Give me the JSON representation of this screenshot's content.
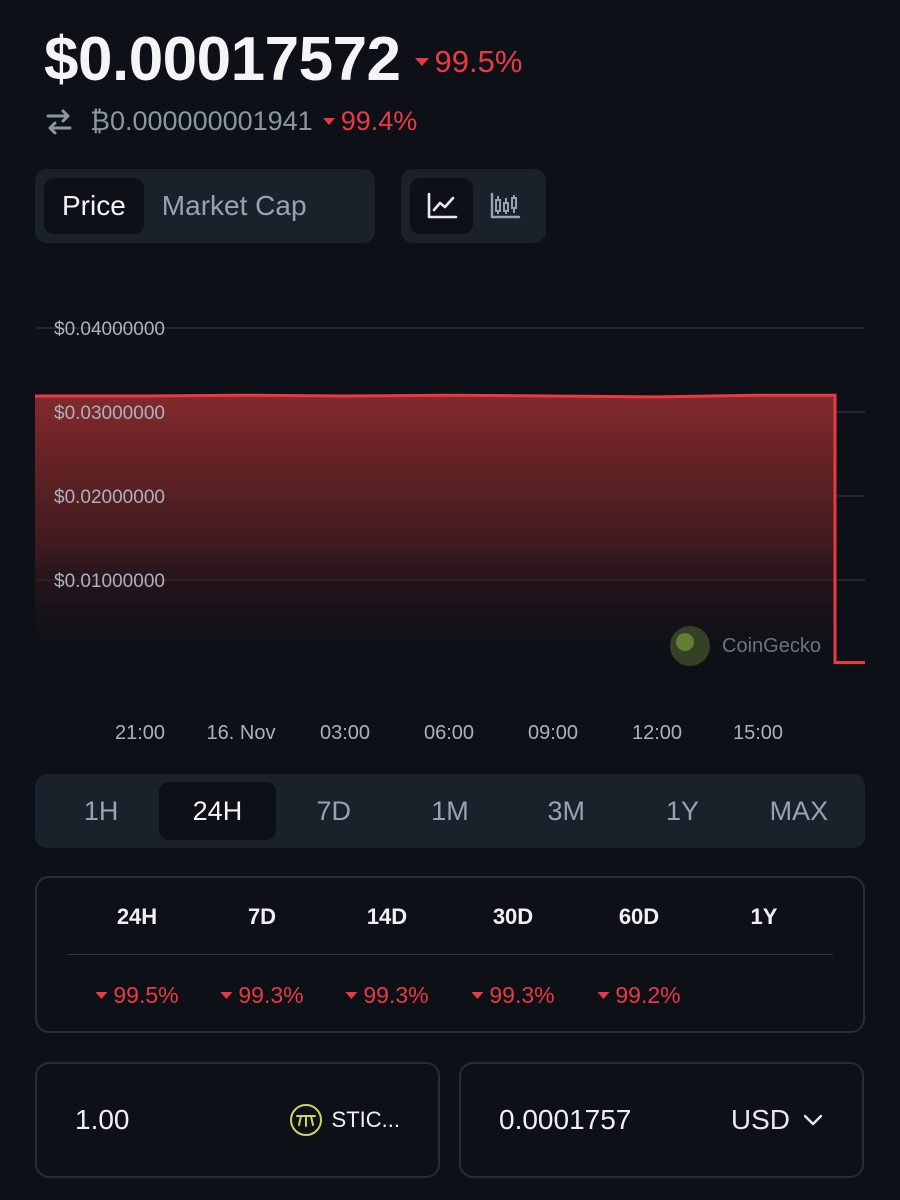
{
  "header": {
    "price": "$0.00017572",
    "price_change": "99.5%",
    "btc_price": "₿0.000000001941",
    "btc_change": "99.4%"
  },
  "toggles": {
    "price_label": "Price",
    "market_cap_label": "Market Cap",
    "line_icon": "line-chart-icon",
    "candle_icon": "candlestick-icon"
  },
  "chart_data": {
    "type": "area",
    "title": "",
    "y_ticks": [
      "$0.04000000",
      "$0.03000000",
      "$0.02000000",
      "$0.01000000"
    ],
    "x_ticks": [
      "21:00",
      "16. Nov",
      "03:00",
      "06:00",
      "09:00",
      "12:00",
      "15:00"
    ],
    "ylim": [
      0,
      0.04
    ],
    "grid": true,
    "series": [
      {
        "color": "#ea3943",
        "x": [
          "19:30",
          "21:00",
          "16. Nov",
          "03:00",
          "06:00",
          "09:00",
          "12:00",
          "15:00",
          "17:00",
          "17:00",
          "18:00"
        ],
        "values": [
          0.0319,
          0.0319,
          0.032,
          0.0319,
          0.032,
          0.0319,
          0.0318,
          0.032,
          0.032,
          0.00017572,
          0.00017572
        ]
      }
    ],
    "watermark": "CoinGecko"
  },
  "time_ranges": {
    "items": [
      "1H",
      "24H",
      "7D",
      "1M",
      "3M",
      "1Y",
      "MAX"
    ],
    "selected": "24H"
  },
  "performance": {
    "headers": [
      "24H",
      "7D",
      "14D",
      "30D",
      "60D",
      "1Y"
    ],
    "values": [
      "99.5%",
      "99.3%",
      "99.3%",
      "99.3%",
      "99.2%",
      ""
    ],
    "color": "#ea3943"
  },
  "converter": {
    "amount": "1.00",
    "coin_label": "STIC...",
    "converted": "0.0001757",
    "currency": "USD"
  }
}
